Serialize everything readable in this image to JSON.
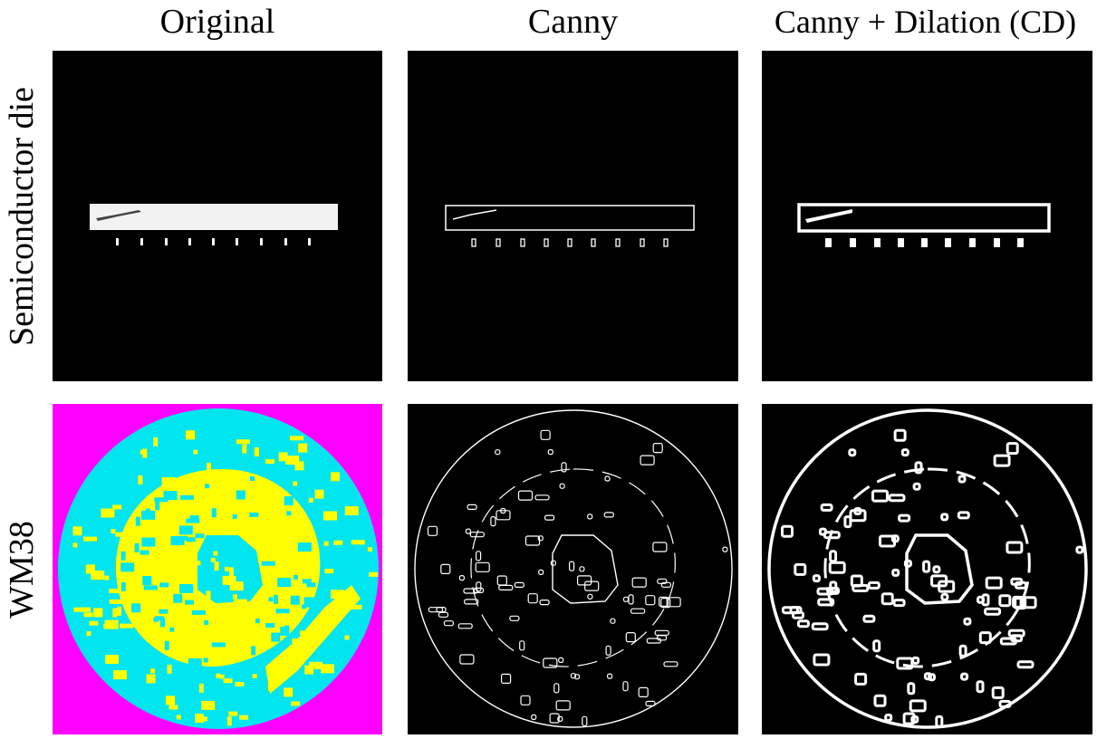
{
  "figure": {
    "columns": [
      {
        "title": "Original"
      },
      {
        "title": "Canny"
      },
      {
        "title": "Canny + Dilation (CD)"
      }
    ],
    "rows": [
      {
        "label": "Semiconductor die"
      },
      {
        "label": "WM38"
      }
    ]
  },
  "colors": {
    "panel_background": "#000000",
    "edge": "#ffffff",
    "wafer_fill": "#00e5ee",
    "wafer_defect": "#ffff00",
    "wafer_background": "#ff00ff",
    "die_fill": "#f2f2f2"
  }
}
